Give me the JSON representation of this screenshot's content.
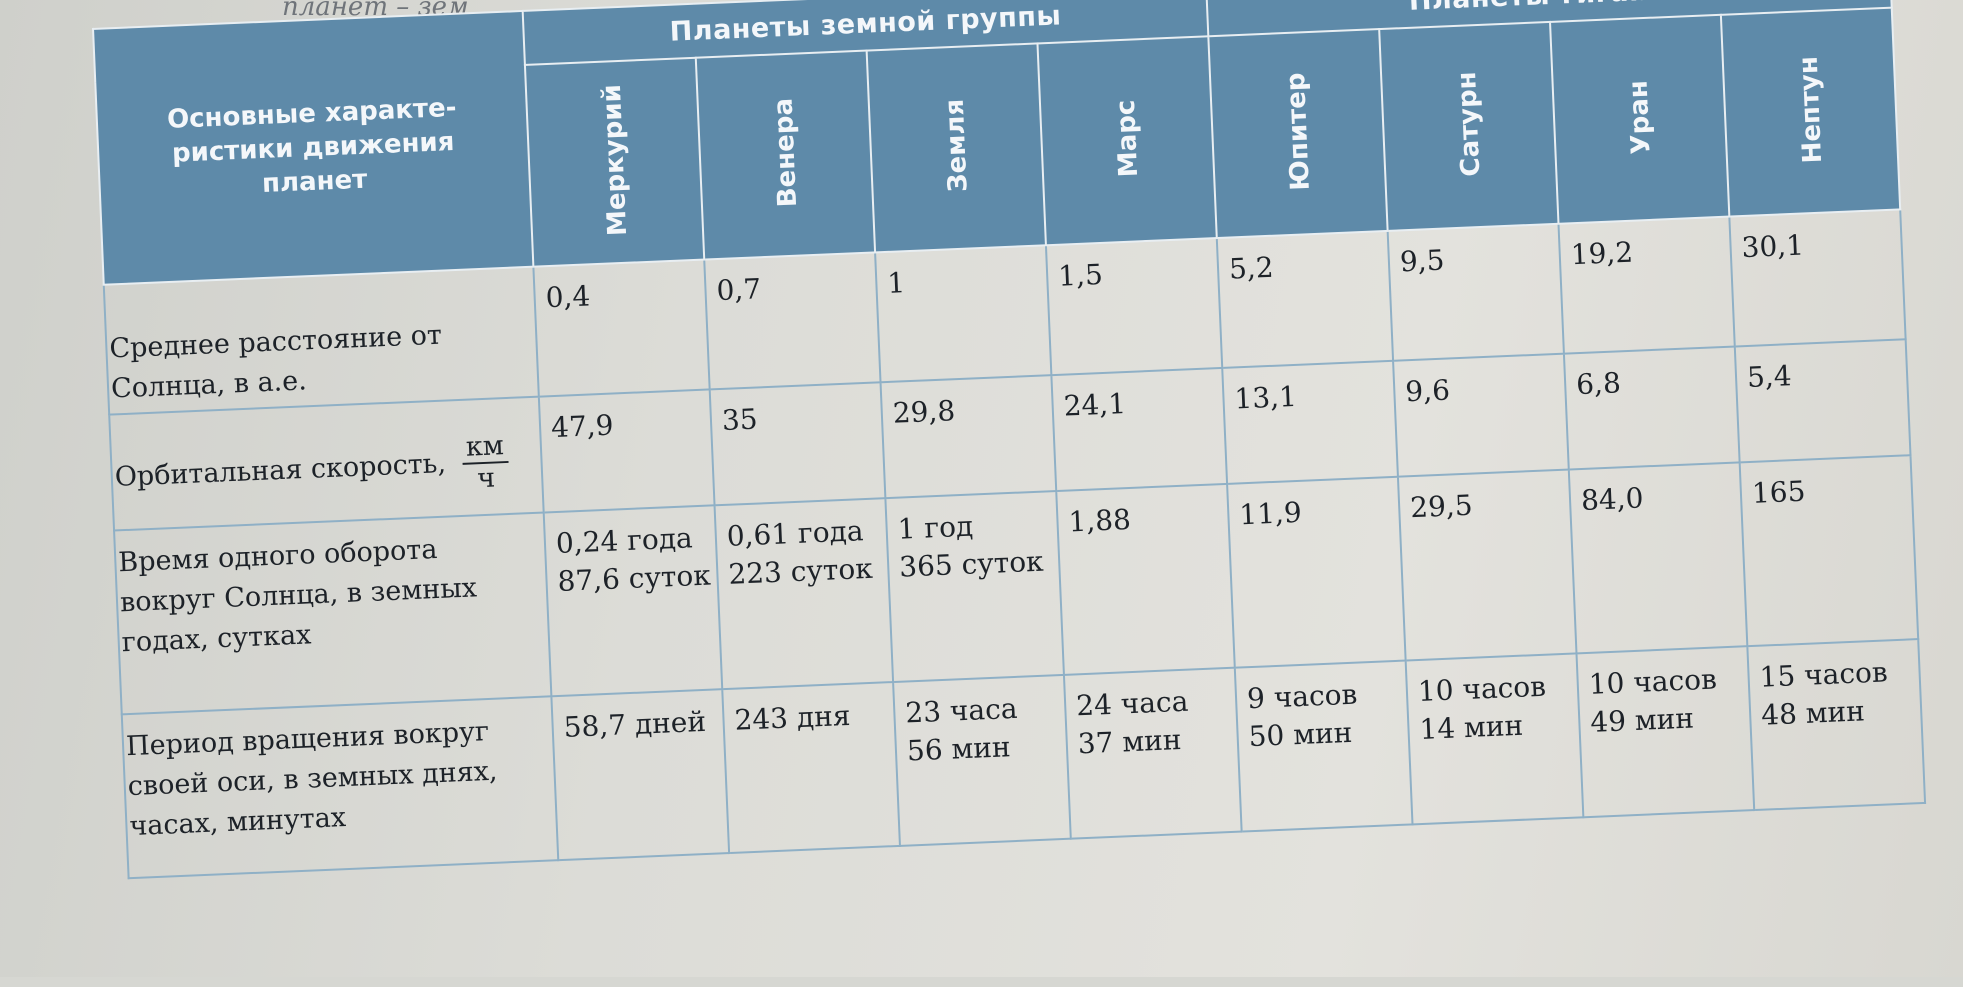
{
  "top_fragment": "планет – зем",
  "table": {
    "label_header": "Основные характе-ристики движения планет",
    "groups": [
      {
        "label": "Планеты земной группы",
        "planets": [
          "Меркурий",
          "Венера",
          "Земля",
          "Марс"
        ]
      },
      {
        "label": "Планеты-гиганты",
        "planets": [
          "Юпитер",
          "Сатурн",
          "Уран",
          "Нептун"
        ]
      }
    ],
    "rows": [
      {
        "label": "Среднее расстояние от Солнца, в а.е.",
        "values": [
          [
            "0,4"
          ],
          [
            "0,7"
          ],
          [
            "1"
          ],
          [
            "1,5"
          ],
          [
            "5,2"
          ],
          [
            "9,5"
          ],
          [
            "19,2"
          ],
          [
            "30,1"
          ]
        ]
      },
      {
        "label": "Орбитальная скорость,",
        "unit_num": "км",
        "unit_den": "ч",
        "values": [
          [
            "47,9"
          ],
          [
            "35"
          ],
          [
            "29,8"
          ],
          [
            "24,1"
          ],
          [
            "13,1"
          ],
          [
            "9,6"
          ],
          [
            "6,8"
          ],
          [
            "5,4"
          ]
        ]
      },
      {
        "label": "Время одного оборота вокруг Солнца, в земных годах, сутках",
        "values": [
          [
            "0,24 года",
            "87,6 суток"
          ],
          [
            "0,61 года",
            "223 суток"
          ],
          [
            "1 год",
            "365 суток"
          ],
          [
            "1,88"
          ],
          [
            "11,9"
          ],
          [
            "29,5"
          ],
          [
            "84,0"
          ],
          [
            "165"
          ]
        ]
      },
      {
        "label": "Период вращения вокруг своей оси, в земных днях, часах, минутах",
        "values": [
          [
            "58,7 дней"
          ],
          [
            "243 дня"
          ],
          [
            "23 часа",
            "56 мин"
          ],
          [
            "24 часа",
            "37 мин"
          ],
          [
            "9 часов",
            "50 мин"
          ],
          [
            "10 часов",
            "14 мин"
          ],
          [
            "10 часов",
            "49 мин"
          ],
          [
            "15 часов",
            "48 мин"
          ]
        ]
      }
    ]
  }
}
